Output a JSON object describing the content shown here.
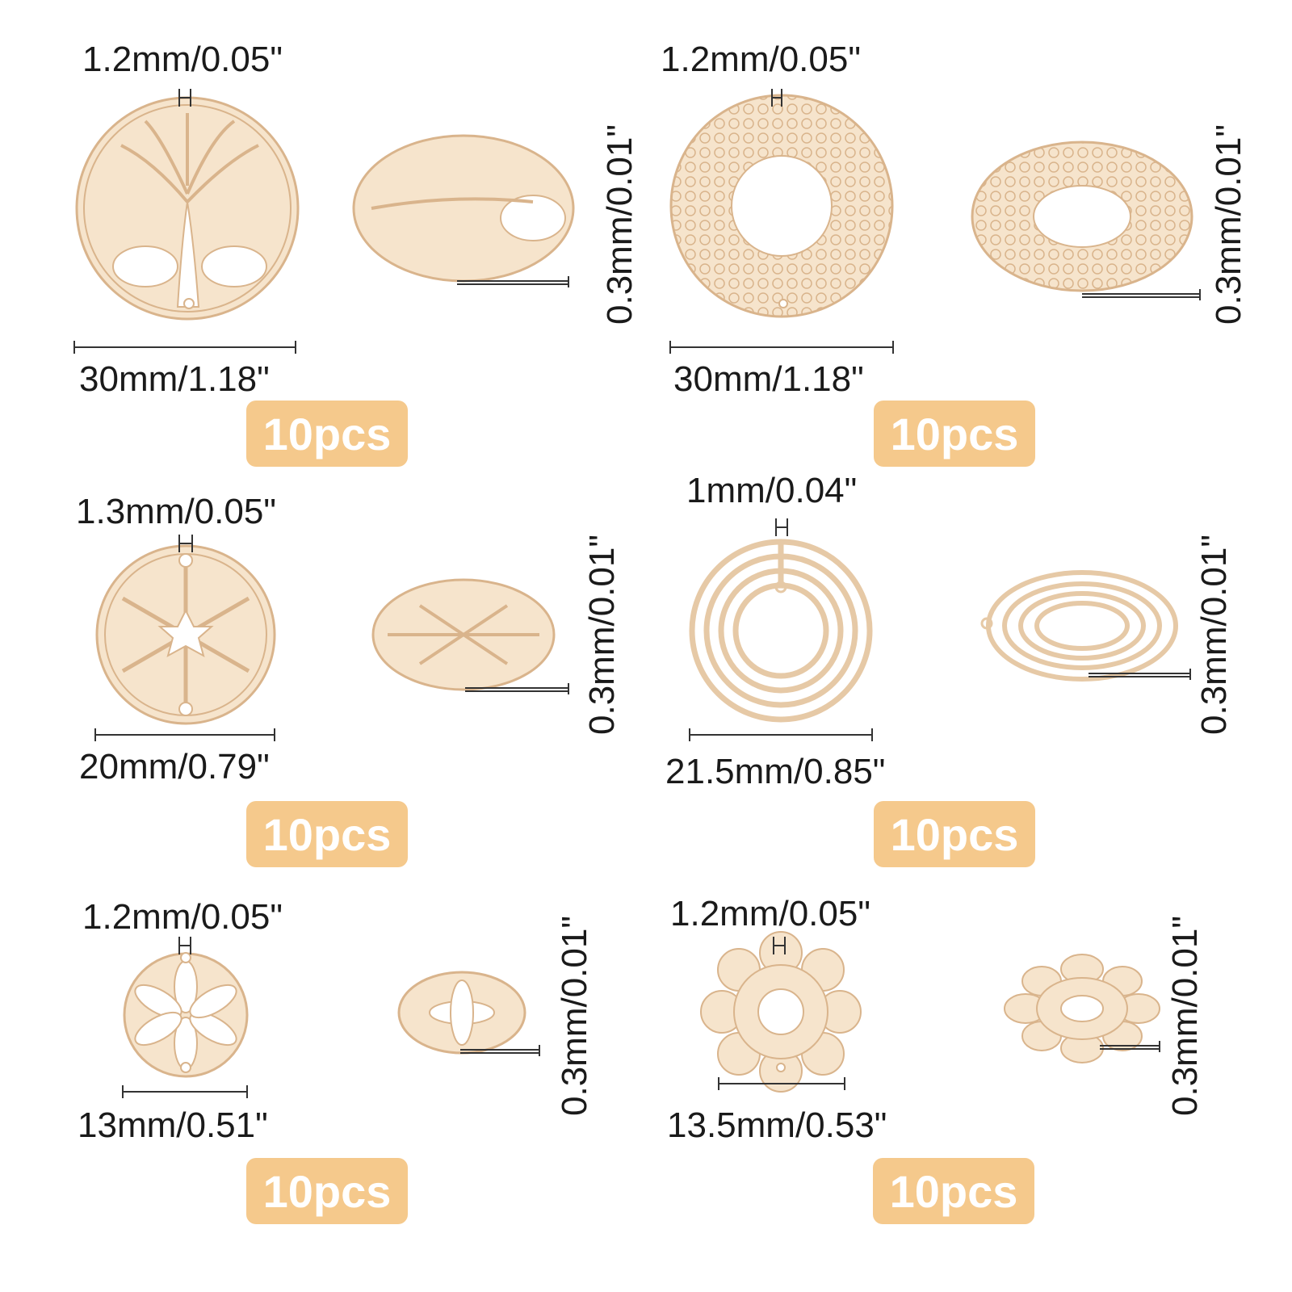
{
  "items": [
    {
      "name": "tree-of-life",
      "hole": "1.2mm/0.05\"",
      "diameter": "30mm/1.18\"",
      "thickness": "0.3mm/0.01\"",
      "qty": "10pcs"
    },
    {
      "name": "mesh-ring",
      "hole": "1.2mm/0.05\"",
      "diameter": "30mm/1.18\"",
      "thickness": "0.3mm/0.01\"",
      "qty": "10pcs"
    },
    {
      "name": "snowflake",
      "hole": "1.3mm/0.05\"",
      "diameter": "20mm/0.79\"",
      "thickness": "0.3mm/0.01\"",
      "qty": "10pcs"
    },
    {
      "name": "concentric-rings",
      "hole": "1mm/0.04\"",
      "diameter": "21.5mm/0.85\"",
      "thickness": "0.3mm/0.01\"",
      "qty": "10pcs"
    },
    {
      "name": "flower",
      "hole": "1.2mm/0.05\"",
      "diameter": "13mm/0.51\"",
      "thickness": "0.3mm/0.01\"",
      "qty": "10pcs"
    },
    {
      "name": "mandala",
      "hole": "1.2mm/0.05\"",
      "diameter": "13.5mm/0.53\"",
      "thickness": "0.3mm/0.01\"",
      "qty": "10pcs"
    }
  ],
  "colors": {
    "badge": "#f5c98c",
    "metal": "#f3dcc0",
    "metal_edge": "#d9b48c"
  }
}
